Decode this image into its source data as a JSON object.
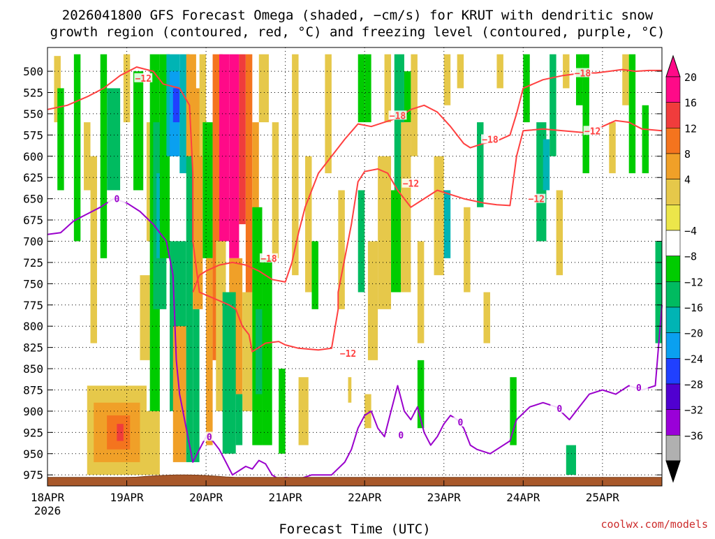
{
  "chart_data": {
    "type": "heatmap",
    "title_line1": "2026041800 GFS Forecast Omega (shaded, −cm/s) for KRUT with dendritic snow",
    "title_line2": "growth region (contoured, red, °C) and freezing level (contoured, purple, °C)",
    "xlabel": "Forecast Time (UTC)",
    "credit": "coolwx.com/models",
    "x_ticks": [
      {
        "t": 0,
        "label": "18APR",
        "sub": "2026"
      },
      {
        "t": 24,
        "label": "19APR",
        "sub": ""
      },
      {
        "t": 48,
        "label": "20APR",
        "sub": ""
      },
      {
        "t": 72,
        "label": "21APR",
        "sub": ""
      },
      {
        "t": 96,
        "label": "22APR",
        "sub": ""
      },
      {
        "t": 120,
        "label": "23APR",
        "sub": ""
      },
      {
        "t": 144,
        "label": "24APR",
        "sub": ""
      },
      {
        "t": 168,
        "label": "25APR",
        "sub": ""
      }
    ],
    "x_range_hours": [
      0,
      186
    ],
    "y_ticks": [
      500,
      525,
      550,
      575,
      600,
      625,
      650,
      675,
      700,
      725,
      750,
      775,
      800,
      825,
      850,
      875,
      900,
      925,
      950,
      975
    ],
    "y_range_hpa": [
      472,
      988
    ],
    "colorbar": {
      "labels": [
        "20",
        "16",
        "12",
        "8",
        "4",
        "−4",
        "−8",
        "−12",
        "−16",
        "−20",
        "−24",
        "−28",
        "−32",
        "−36"
      ],
      "colors": [
        "#ff0a88",
        "#f03c3c",
        "#f4741e",
        "#f0a028",
        "#e6c84a",
        "#ece64a",
        "#ffffff",
        "#00cc00",
        "#00bb60",
        "#00b4b4",
        "#0aa0f0",
        "#2040ff",
        "#5000d0",
        "#9a00d8",
        "#b0b0b0"
      ]
    },
    "omega_cells": [
      {
        "t0": 2,
        "t1": 4,
        "p0": 482,
        "p1": 560,
        "v": 6
      },
      {
        "t0": 3,
        "t1": 5,
        "p0": 520,
        "p1": 640,
        "v": -6
      },
      {
        "t0": 8,
        "t1": 10,
        "p0": 480,
        "p1": 700,
        "v": -6
      },
      {
        "t0": 11,
        "t1": 13,
        "p0": 560,
        "p1": 640,
        "v": 6
      },
      {
        "t0": 13,
        "t1": 15,
        "p0": 600,
        "p1": 820,
        "v": 6
      },
      {
        "t0": 16,
        "t1": 18,
        "p0": 480,
        "p1": 720,
        "v": -6
      },
      {
        "t0": 18,
        "t1": 22,
        "p0": 520,
        "p1": 640,
        "v": -9
      },
      {
        "t0": 23,
        "t1": 25,
        "p0": 480,
        "p1": 560,
        "v": 6
      },
      {
        "t0": 26,
        "t1": 29,
        "p0": 500,
        "p1": 640,
        "v": -6
      },
      {
        "t0": 30,
        "t1": 32,
        "p0": 560,
        "p1": 700,
        "v": 6
      },
      {
        "t0": 28,
        "t1": 31,
        "p0": 740,
        "p1": 840,
        "v": 6
      },
      {
        "t0": 12,
        "t1": 30,
        "p0": 870,
        "p1": 975,
        "v": 6
      },
      {
        "t0": 14,
        "t1": 28,
        "p0": 890,
        "p1": 960,
        "v": 10
      },
      {
        "t0": 18,
        "t1": 25,
        "p0": 905,
        "p1": 945,
        "v": 14
      },
      {
        "t0": 21,
        "t1": 23,
        "p0": 915,
        "p1": 935,
        "v": 18
      },
      {
        "t0": 28,
        "t1": 34,
        "p0": 900,
        "p1": 975,
        "v": 6
      },
      {
        "t0": 31,
        "t1": 34,
        "p0": 480,
        "p1": 900,
        "v": -6
      },
      {
        "t0": 32,
        "t1": 36,
        "p0": 560,
        "p1": 780,
        "v": -10
      },
      {
        "t0": 33,
        "t1": 36,
        "p0": 620,
        "p1": 720,
        "v": -14
      },
      {
        "t0": 34,
        "t1": 37,
        "p0": 480,
        "p1": 720,
        "v": -6
      },
      {
        "t0": 36,
        "t1": 40,
        "p0": 480,
        "p1": 600,
        "v": -14
      },
      {
        "t0": 37,
        "t1": 40,
        "p0": 500,
        "p1": 600,
        "v": -18
      },
      {
        "t0": 38,
        "t1": 40,
        "p0": 520,
        "p1": 560,
        "v": -22
      },
      {
        "t0": 40,
        "t1": 43,
        "p0": 480,
        "p1": 620,
        "v": -12
      },
      {
        "t0": 37,
        "t1": 42,
        "p0": 700,
        "p1": 900,
        "v": -10
      },
      {
        "t0": 38,
        "t1": 42,
        "p0": 800,
        "p1": 960,
        "v": 10
      },
      {
        "t0": 42,
        "t1": 45,
        "p0": 480,
        "p1": 600,
        "v": 10
      },
      {
        "t0": 42,
        "t1": 44,
        "p0": 600,
        "p1": 960,
        "v": -8
      },
      {
        "t0": 44,
        "t1": 47,
        "p0": 520,
        "p1": 780,
        "v": 10
      },
      {
        "t0": 44,
        "t1": 46,
        "p0": 780,
        "p1": 960,
        "v": -10
      },
      {
        "t0": 46,
        "t1": 48,
        "p0": 480,
        "p1": 600,
        "v": 6
      },
      {
        "t0": 47,
        "t1": 50,
        "p0": 560,
        "p1": 720,
        "v": -6
      },
      {
        "t0": 48,
        "t1": 50,
        "p0": 720,
        "p1": 940,
        "v": 10
      },
      {
        "t0": 50,
        "t1": 53,
        "p0": 480,
        "p1": 840,
        "v": 14
      },
      {
        "t0": 51,
        "t1": 54,
        "p0": 700,
        "p1": 900,
        "v": 6
      },
      {
        "t0": 52,
        "t1": 55,
        "p0": 480,
        "p1": 700,
        "v": 20
      },
      {
        "t0": 55,
        "t1": 58,
        "p0": 480,
        "p1": 720,
        "v": 22
      },
      {
        "t0": 58,
        "t1": 60,
        "p0": 480,
        "p1": 680,
        "v": 18
      },
      {
        "t0": 60,
        "t1": 62,
        "p0": 480,
        "p1": 760,
        "v": 14
      },
      {
        "t0": 62,
        "t1": 64,
        "p0": 560,
        "p1": 820,
        "v": 10
      },
      {
        "t0": 64,
        "t1": 67,
        "p0": 480,
        "p1": 560,
        "v": 6
      },
      {
        "t0": 55,
        "t1": 59,
        "p0": 720,
        "p1": 880,
        "v": 10
      },
      {
        "t0": 59,
        "t1": 62,
        "p0": 760,
        "p1": 900,
        "v": 6
      },
      {
        "t0": 53,
        "t1": 57,
        "p0": 760,
        "p1": 950,
        "v": -8
      },
      {
        "t0": 57,
        "t1": 59,
        "p0": 880,
        "p1": 940,
        "v": -10
      },
      {
        "t0": 62,
        "t1": 65,
        "p0": 660,
        "p1": 940,
        "v": -6
      },
      {
        "t0": 63,
        "t1": 66,
        "p0": 780,
        "p1": 880,
        "v": -10
      },
      {
        "t0": 65,
        "t1": 68,
        "p0": 720,
        "p1": 940,
        "v": -6
      },
      {
        "t0": 68,
        "t1": 70,
        "p0": 560,
        "p1": 720,
        "v": 6
      },
      {
        "t0": 70,
        "t1": 72,
        "p0": 850,
        "p1": 950,
        "v": -6
      },
      {
        "t0": 74,
        "t1": 76,
        "p0": 480,
        "p1": 740,
        "v": 6
      },
      {
        "t0": 78,
        "t1": 80,
        "p0": 600,
        "p1": 760,
        "v": 6
      },
      {
        "t0": 80,
        "t1": 82,
        "p0": 700,
        "p1": 780,
        "v": -6
      },
      {
        "t0": 76,
        "t1": 79,
        "p0": 860,
        "p1": 940,
        "v": 6
      },
      {
        "t0": 84,
        "t1": 86,
        "p0": 480,
        "p1": 620,
        "v": 6
      },
      {
        "t0": 88,
        "t1": 90,
        "p0": 640,
        "p1": 780,
        "v": 6
      },
      {
        "t0": 91,
        "t1": 92,
        "p0": 860,
        "p1": 890,
        "v": 6
      },
      {
        "t0": 94,
        "t1": 96,
        "p0": 480,
        "p1": 560,
        "v": -6
      },
      {
        "t0": 94,
        "t1": 96,
        "p0": 640,
        "p1": 760,
        "v": -8
      },
      {
        "t0": 96,
        "t1": 98,
        "p0": 480,
        "p1": 560,
        "v": -6
      },
      {
        "t0": 97,
        "t1": 100,
        "p0": 700,
        "p1": 840,
        "v": 6
      },
      {
        "t0": 96,
        "t1": 98,
        "p0": 880,
        "p1": 920,
        "v": 6
      },
      {
        "t0": 100,
        "t1": 104,
        "p0": 600,
        "p1": 780,
        "v": 6
      },
      {
        "t0": 102,
        "t1": 104,
        "p0": 480,
        "p1": 560,
        "v": 6
      },
      {
        "t0": 104,
        "t1": 107,
        "p0": 640,
        "p1": 760,
        "v": -6
      },
      {
        "t0": 105,
        "t1": 108,
        "p0": 480,
        "p1": 640,
        "v": -8
      },
      {
        "t0": 108,
        "t1": 110,
        "p0": 500,
        "p1": 560,
        "v": -6
      },
      {
        "t0": 107,
        "t1": 110,
        "p0": 560,
        "p1": 760,
        "v": 6
      },
      {
        "t0": 110,
        "t1": 112,
        "p0": 480,
        "p1": 600,
        "v": 6
      },
      {
        "t0": 112,
        "t1": 114,
        "p0": 700,
        "p1": 820,
        "v": 6
      },
      {
        "t0": 112,
        "t1": 114,
        "p0": 840,
        "p1": 920,
        "v": -6
      },
      {
        "t0": 117,
        "t1": 120,
        "p0": 600,
        "p1": 740,
        "v": 6
      },
      {
        "t0": 120,
        "t1": 122,
        "p0": 640,
        "p1": 720,
        "v": -12
      },
      {
        "t0": 120,
        "t1": 122,
        "p0": 480,
        "p1": 540,
        "v": 6
      },
      {
        "t0": 124,
        "t1": 126,
        "p0": 480,
        "p1": 520,
        "v": 6
      },
      {
        "t0": 126,
        "t1": 128,
        "p0": 660,
        "p1": 760,
        "v": 6
      },
      {
        "t0": 130,
        "t1": 132,
        "p0": 560,
        "p1": 660,
        "v": -8
      },
      {
        "t0": 132,
        "t1": 134,
        "p0": 760,
        "p1": 820,
        "v": 6
      },
      {
        "t0": 136,
        "t1": 138,
        "p0": 480,
        "p1": 520,
        "v": 6
      },
      {
        "t0": 140,
        "t1": 142,
        "p0": 860,
        "p1": 940,
        "v": -6
      },
      {
        "t0": 144,
        "t1": 146,
        "p0": 480,
        "p1": 560,
        "v": -6
      },
      {
        "t0": 148,
        "t1": 151,
        "p0": 560,
        "p1": 700,
        "v": -8
      },
      {
        "t0": 150,
        "t1": 152,
        "p0": 580,
        "p1": 640,
        "v": -12
      },
      {
        "t0": 152,
        "t1": 154,
        "p0": 480,
        "p1": 600,
        "v": -8
      },
      {
        "t0": 154,
        "t1": 156,
        "p0": 640,
        "p1": 740,
        "v": 6
      },
      {
        "t0": 156,
        "t1": 158,
        "p0": 480,
        "p1": 520,
        "v": 6
      },
      {
        "t0": 157,
        "t1": 160,
        "p0": 940,
        "p1": 975,
        "v": -8
      },
      {
        "t0": 160,
        "t1": 162,
        "p0": 480,
        "p1": 540,
        "v": -6
      },
      {
        "t0": 162,
        "t1": 164,
        "p0": 480,
        "p1": 620,
        "v": -6
      },
      {
        "t0": 170,
        "t1": 172,
        "p0": 560,
        "p1": 620,
        "v": 6
      },
      {
        "t0": 174,
        "t1": 176,
        "p0": 480,
        "p1": 540,
        "v": 6
      },
      {
        "t0": 176,
        "t1": 178,
        "p0": 480,
        "p1": 620,
        "v": -6
      },
      {
        "t0": 180,
        "t1": 182,
        "p0": 540,
        "p1": 620,
        "v": -6
      },
      {
        "t0": 184,
        "t1": 186,
        "p0": 700,
        "p1": 820,
        "v": -8
      }
    ],
    "dgz_label": "−12",
    "dgz_upper_label": "−18",
    "fzl_label": "0",
    "dgz_minus12": [
      [
        0,
        545
      ],
      [
        6,
        540
      ],
      [
        12,
        530
      ],
      [
        17,
        520
      ],
      [
        22,
        505
      ],
      [
        27,
        495
      ],
      [
        32,
        500
      ],
      [
        35,
        515
      ],
      [
        40,
        520
      ],
      [
        43,
        540
      ],
      [
        44,
        620
      ],
      [
        44,
        700
      ],
      [
        46,
        760
      ],
      [
        52,
        770
      ],
      [
        55,
        775
      ],
      [
        57,
        780
      ],
      [
        59,
        800
      ],
      [
        61,
        810
      ],
      [
        62,
        830
      ],
      [
        64,
        825
      ],
      [
        66,
        820
      ],
      [
        70,
        818
      ],
      [
        72,
        822
      ],
      [
        76,
        826
      ],
      [
        82,
        828
      ],
      [
        86,
        826
      ],
      [
        88,
        780
      ],
      [
        88,
        760
      ],
      [
        92,
        680
      ],
      [
        94,
        630
      ],
      [
        96,
        618
      ],
      [
        100,
        615
      ],
      [
        103,
        620
      ],
      [
        106,
        640
      ],
      [
        110,
        660
      ],
      [
        114,
        650
      ],
      [
        118,
        640
      ],
      [
        122,
        645
      ],
      [
        126,
        650
      ],
      [
        132,
        655
      ],
      [
        136,
        657
      ],
      [
        140,
        658
      ],
      [
        142,
        600
      ],
      [
        144,
        570
      ],
      [
        150,
        568
      ],
      [
        156,
        570
      ],
      [
        162,
        572
      ],
      [
        168,
        565
      ],
      [
        172,
        558
      ],
      [
        176,
        560
      ],
      [
        180,
        568
      ],
      [
        186,
        570
      ]
    ],
    "dgz_minus18": [
      [
        44,
        760
      ],
      [
        46,
        740
      ],
      [
        48,
        735
      ],
      [
        52,
        728
      ],
      [
        56,
        725
      ],
      [
        60,
        728
      ],
      [
        64,
        735
      ],
      [
        68,
        745
      ],
      [
        72,
        748
      ],
      [
        74,
        725
      ],
      [
        76,
        690
      ],
      [
        78,
        660
      ],
      [
        82,
        620
      ],
      [
        86,
        600
      ],
      [
        90,
        580
      ],
      [
        94,
        562
      ],
      [
        98,
        565
      ],
      [
        102,
        560
      ],
      [
        106,
        555
      ],
      [
        110,
        545
      ],
      [
        114,
        540
      ],
      [
        118,
        548
      ],
      [
        122,
        565
      ],
      [
        126,
        585
      ],
      [
        128,
        590
      ],
      [
        132,
        585
      ],
      [
        136,
        582
      ],
      [
        140,
        575
      ],
      [
        142,
        550
      ],
      [
        144,
        520
      ],
      [
        150,
        510
      ],
      [
        156,
        505
      ],
      [
        162,
        502
      ],
      [
        166,
        502
      ],
      [
        170,
        500
      ],
      [
        174,
        498
      ],
      [
        178,
        500
      ],
      [
        182,
        499
      ],
      [
        186,
        499
      ]
    ],
    "fzl_zero": [
      [
        0,
        692
      ],
      [
        4,
        690
      ],
      [
        8,
        676
      ],
      [
        12,
        668
      ],
      [
        16,
        660
      ],
      [
        20,
        650
      ],
      [
        24,
        655
      ],
      [
        28,
        665
      ],
      [
        32,
        680
      ],
      [
        36,
        700
      ],
      [
        38,
        740
      ],
      [
        39,
        840
      ],
      [
        40,
        880
      ],
      [
        42,
        920
      ],
      [
        44,
        960
      ],
      [
        46,
        945
      ],
      [
        48,
        930
      ],
      [
        50,
        935
      ],
      [
        52,
        945
      ],
      [
        54,
        960
      ],
      [
        56,
        975
      ],
      [
        58,
        970
      ],
      [
        60,
        965
      ],
      [
        62,
        968
      ],
      [
        64,
        958
      ],
      [
        66,
        962
      ],
      [
        68,
        975
      ],
      [
        70,
        980
      ],
      [
        72,
        978
      ],
      [
        76,
        980
      ],
      [
        80,
        975
      ],
      [
        86,
        975
      ],
      [
        90,
        960
      ],
      [
        92,
        945
      ],
      [
        94,
        920
      ],
      [
        96,
        905
      ],
      [
        98,
        900
      ],
      [
        100,
        920
      ],
      [
        102,
        930
      ],
      [
        104,
        900
      ],
      [
        106,
        870
      ],
      [
        108,
        900
      ],
      [
        110,
        910
      ],
      [
        112,
        895
      ],
      [
        114,
        925
      ],
      [
        116,
        940
      ],
      [
        118,
        930
      ],
      [
        120,
        915
      ],
      [
        122,
        905
      ],
      [
        124,
        910
      ],
      [
        126,
        920
      ],
      [
        128,
        940
      ],
      [
        130,
        945
      ],
      [
        134,
        950
      ],
      [
        140,
        935
      ],
      [
        142,
        910
      ],
      [
        146,
        895
      ],
      [
        150,
        890
      ],
      [
        154,
        895
      ],
      [
        158,
        910
      ],
      [
        160,
        900
      ],
      [
        164,
        880
      ],
      [
        168,
        875
      ],
      [
        172,
        880
      ],
      [
        176,
        870
      ],
      [
        180,
        875
      ],
      [
        184,
        870
      ],
      [
        186,
        775
      ]
    ],
    "ground_pressure": 978
  }
}
